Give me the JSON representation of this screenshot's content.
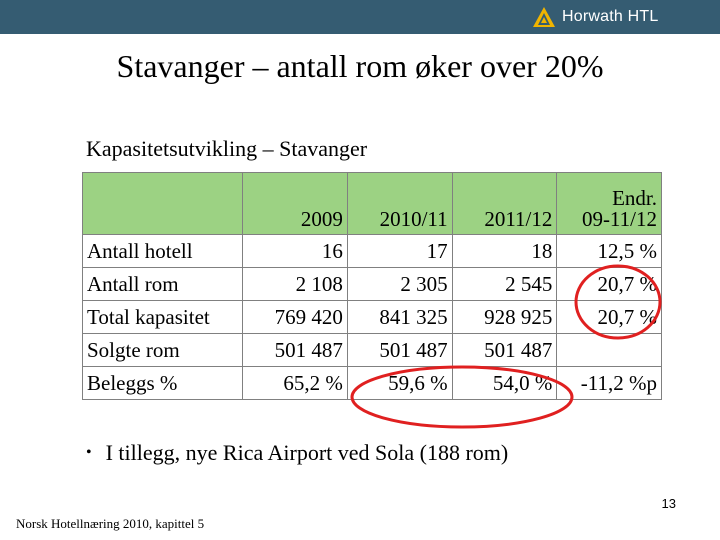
{
  "header": {
    "logo_text": "Horwath HTL",
    "bar_color": "#355c72",
    "logo_icon": "horwath-triangle-icon"
  },
  "title": "Stavanger – antall rom øker over 20%",
  "subtitle": "Kapasitetsutvikling – Stavanger",
  "table": {
    "header_color": "#9cd283",
    "columns": [
      {
        "line1": "",
        "line2": "2009"
      },
      {
        "line1": "",
        "line2": "2010/11"
      },
      {
        "line1": "",
        "line2": "2011/12"
      },
      {
        "line1": "Endr.",
        "line2": "09-11/12"
      }
    ],
    "rows": [
      {
        "label": "Antall hotell",
        "cells": [
          "16",
          "17",
          "18",
          "12,5 %"
        ]
      },
      {
        "label": "Antall rom",
        "cells": [
          "2 108",
          "2 305",
          "2 545",
          "20,7 %"
        ]
      },
      {
        "label": "Total kapasitet",
        "cells": [
          "769 420",
          "841 325",
          "928 925",
          "20,7 %"
        ]
      },
      {
        "label": "Solgte rom",
        "cells": [
          "501 487",
          "501 487",
          "501 487",
          ""
        ]
      },
      {
        "label": "Beleggs %",
        "cells": [
          "65,2 %",
          "59,6 %",
          "54,0 %",
          "-11,2 %p"
        ]
      }
    ],
    "highlight_color": "#e02020"
  },
  "bullet": "I tillegg, nye Rica Airport ved Sola (188 rom)",
  "page_number": "13",
  "footer": "Norsk Hotellnæring 2010, kapittel 5"
}
